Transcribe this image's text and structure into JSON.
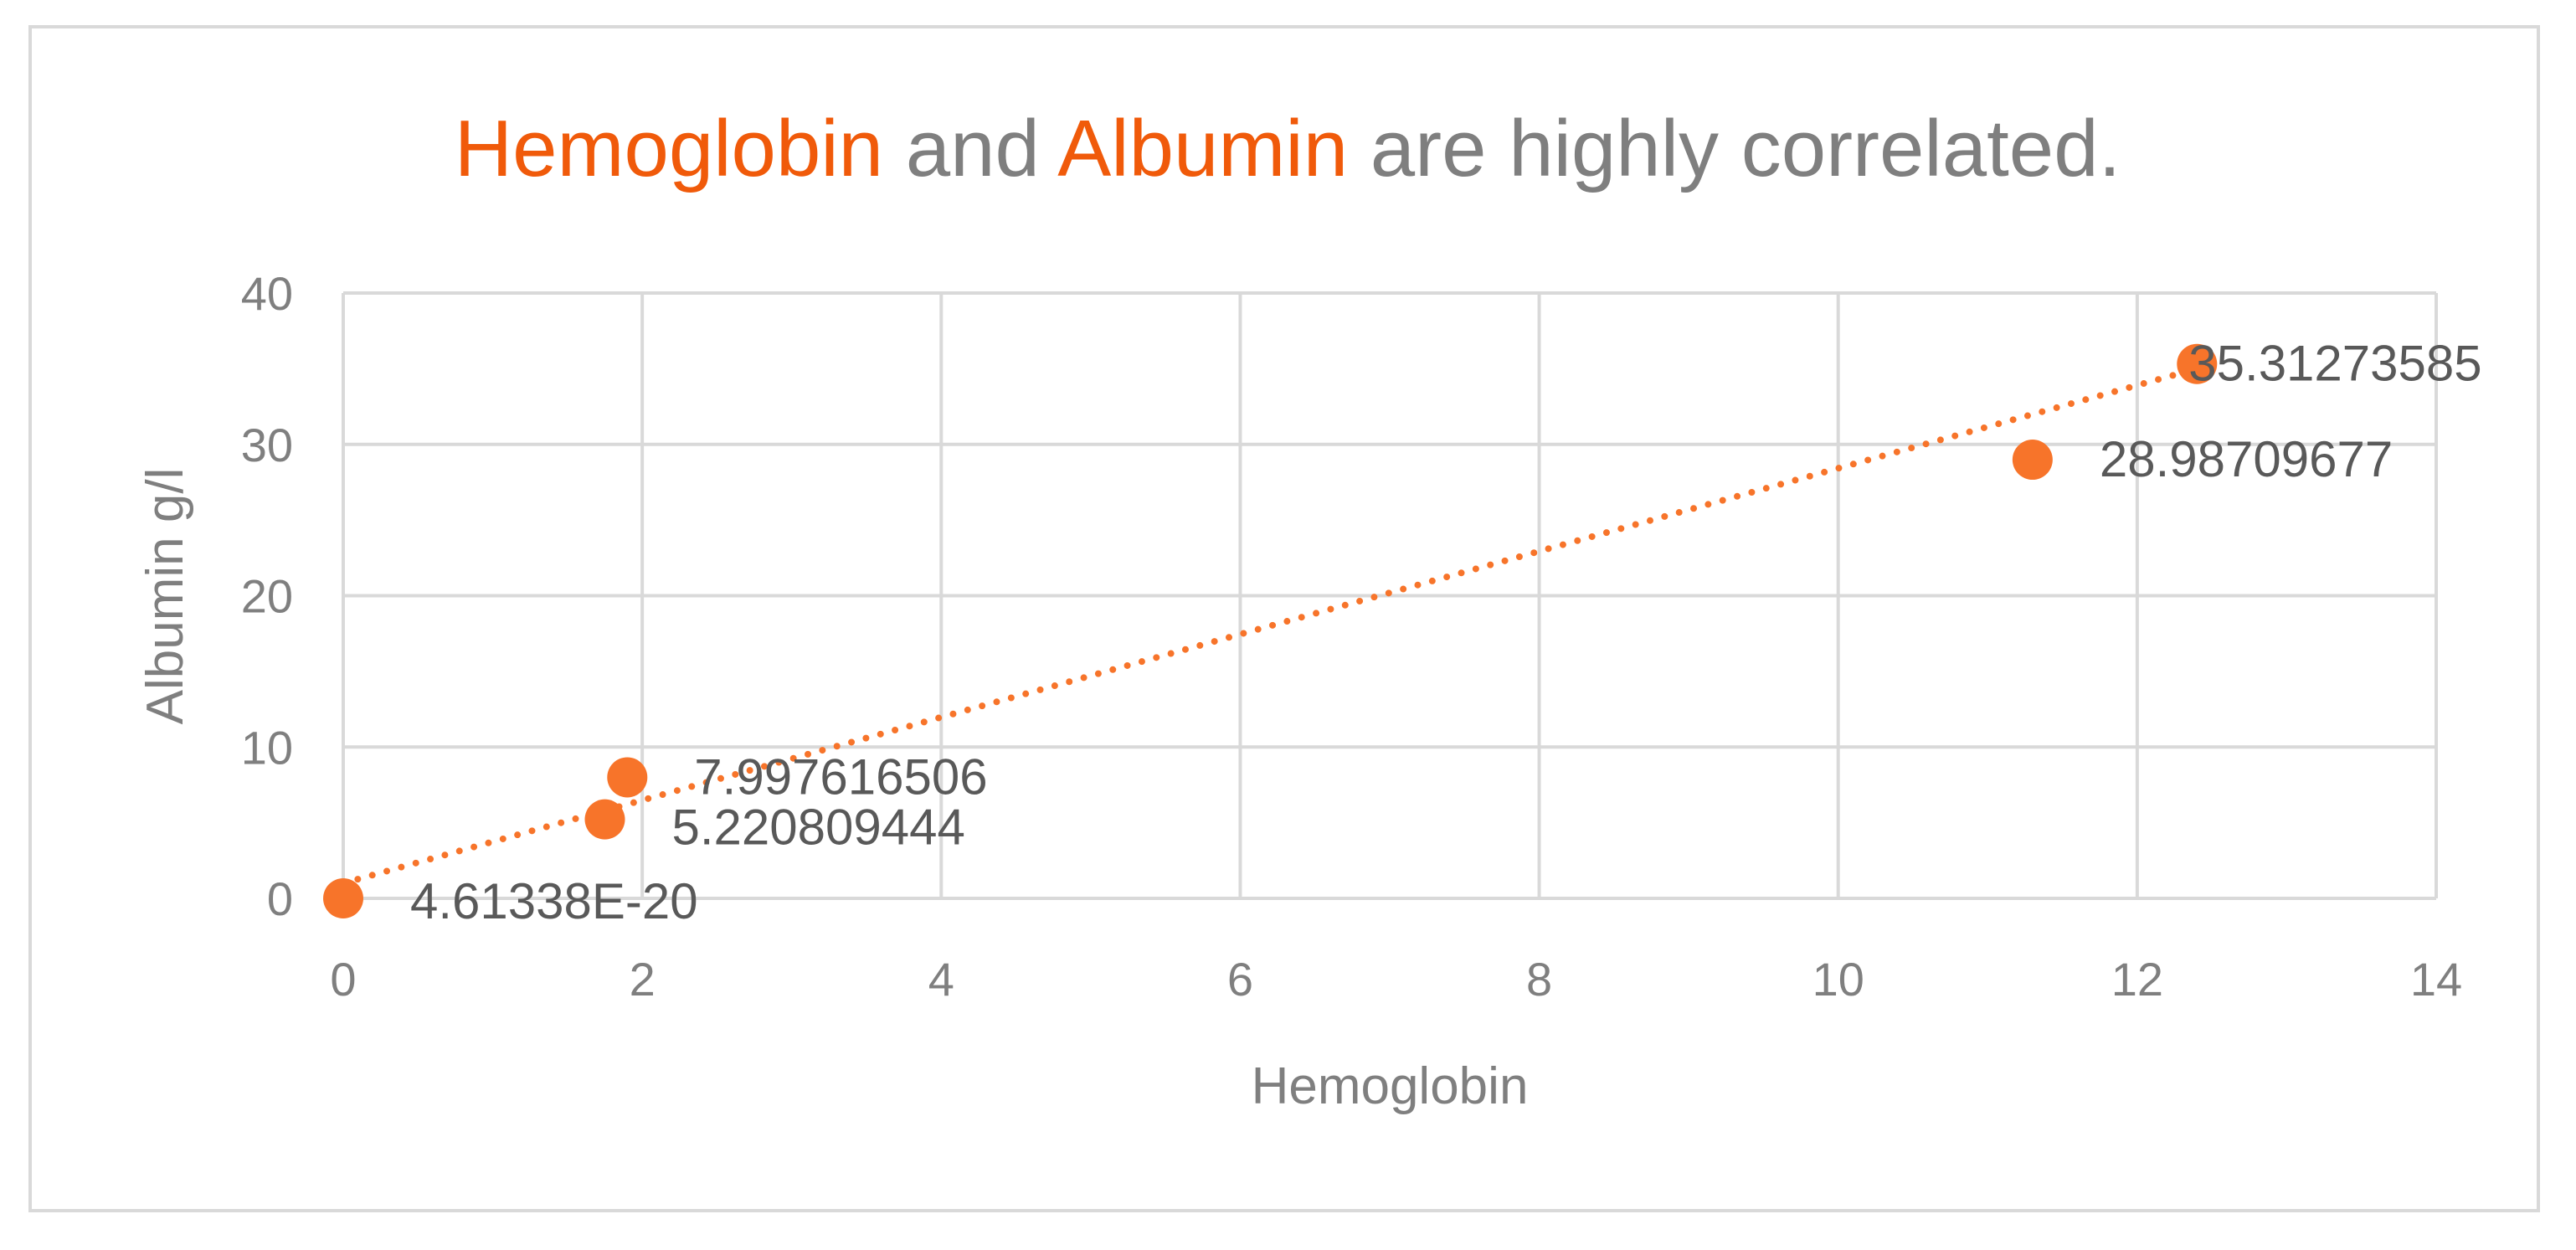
{
  "colors": {
    "accent": "#f05a0a",
    "point": "#f7742a",
    "text_gray": "#7f7f7f",
    "label_gray": "#595959",
    "grid": "#d9d9d9"
  },
  "chart_data": {
    "type": "scatter",
    "title_parts": [
      {
        "text": "Hemoglobin",
        "color": "#f05a0a"
      },
      {
        "text": " and ",
        "color": "#7f7f7f"
      },
      {
        "text": "Albumin",
        "color": "#f05a0a"
      },
      {
        "text": " are highly correlated.",
        "color": "#7f7f7f"
      }
    ],
    "xlabel": "Hemoglobin",
    "ylabel": "Albumin g/l",
    "xlim": [
      0,
      14
    ],
    "ylim": [
      0,
      40
    ],
    "x_ticks": [
      0,
      2,
      4,
      6,
      8,
      10,
      12,
      14
    ],
    "y_ticks": [
      0,
      10,
      20,
      30,
      40
    ],
    "grid": true,
    "legend": "none",
    "series": [
      {
        "points": [
          {
            "x": 0,
            "y": 0,
            "label": "4.61338E-20"
          },
          {
            "x": 1.75,
            "y": 5.220809444,
            "label": "5.220809444"
          },
          {
            "x": 1.9,
            "y": 7.997616506,
            "label": "7.997616506"
          },
          {
            "x": 11.3,
            "y": 28.98709677,
            "label": "28.98709677"
          },
          {
            "x": 12.4,
            "y": 35.31273585,
            "label": "35.31273585"
          }
        ]
      }
    ],
    "trendline": {
      "type": "linear",
      "style": "dotted",
      "x_range": [
        0,
        12.4
      ],
      "y_at_start": 1.0,
      "y_at_end": 35.0
    }
  }
}
